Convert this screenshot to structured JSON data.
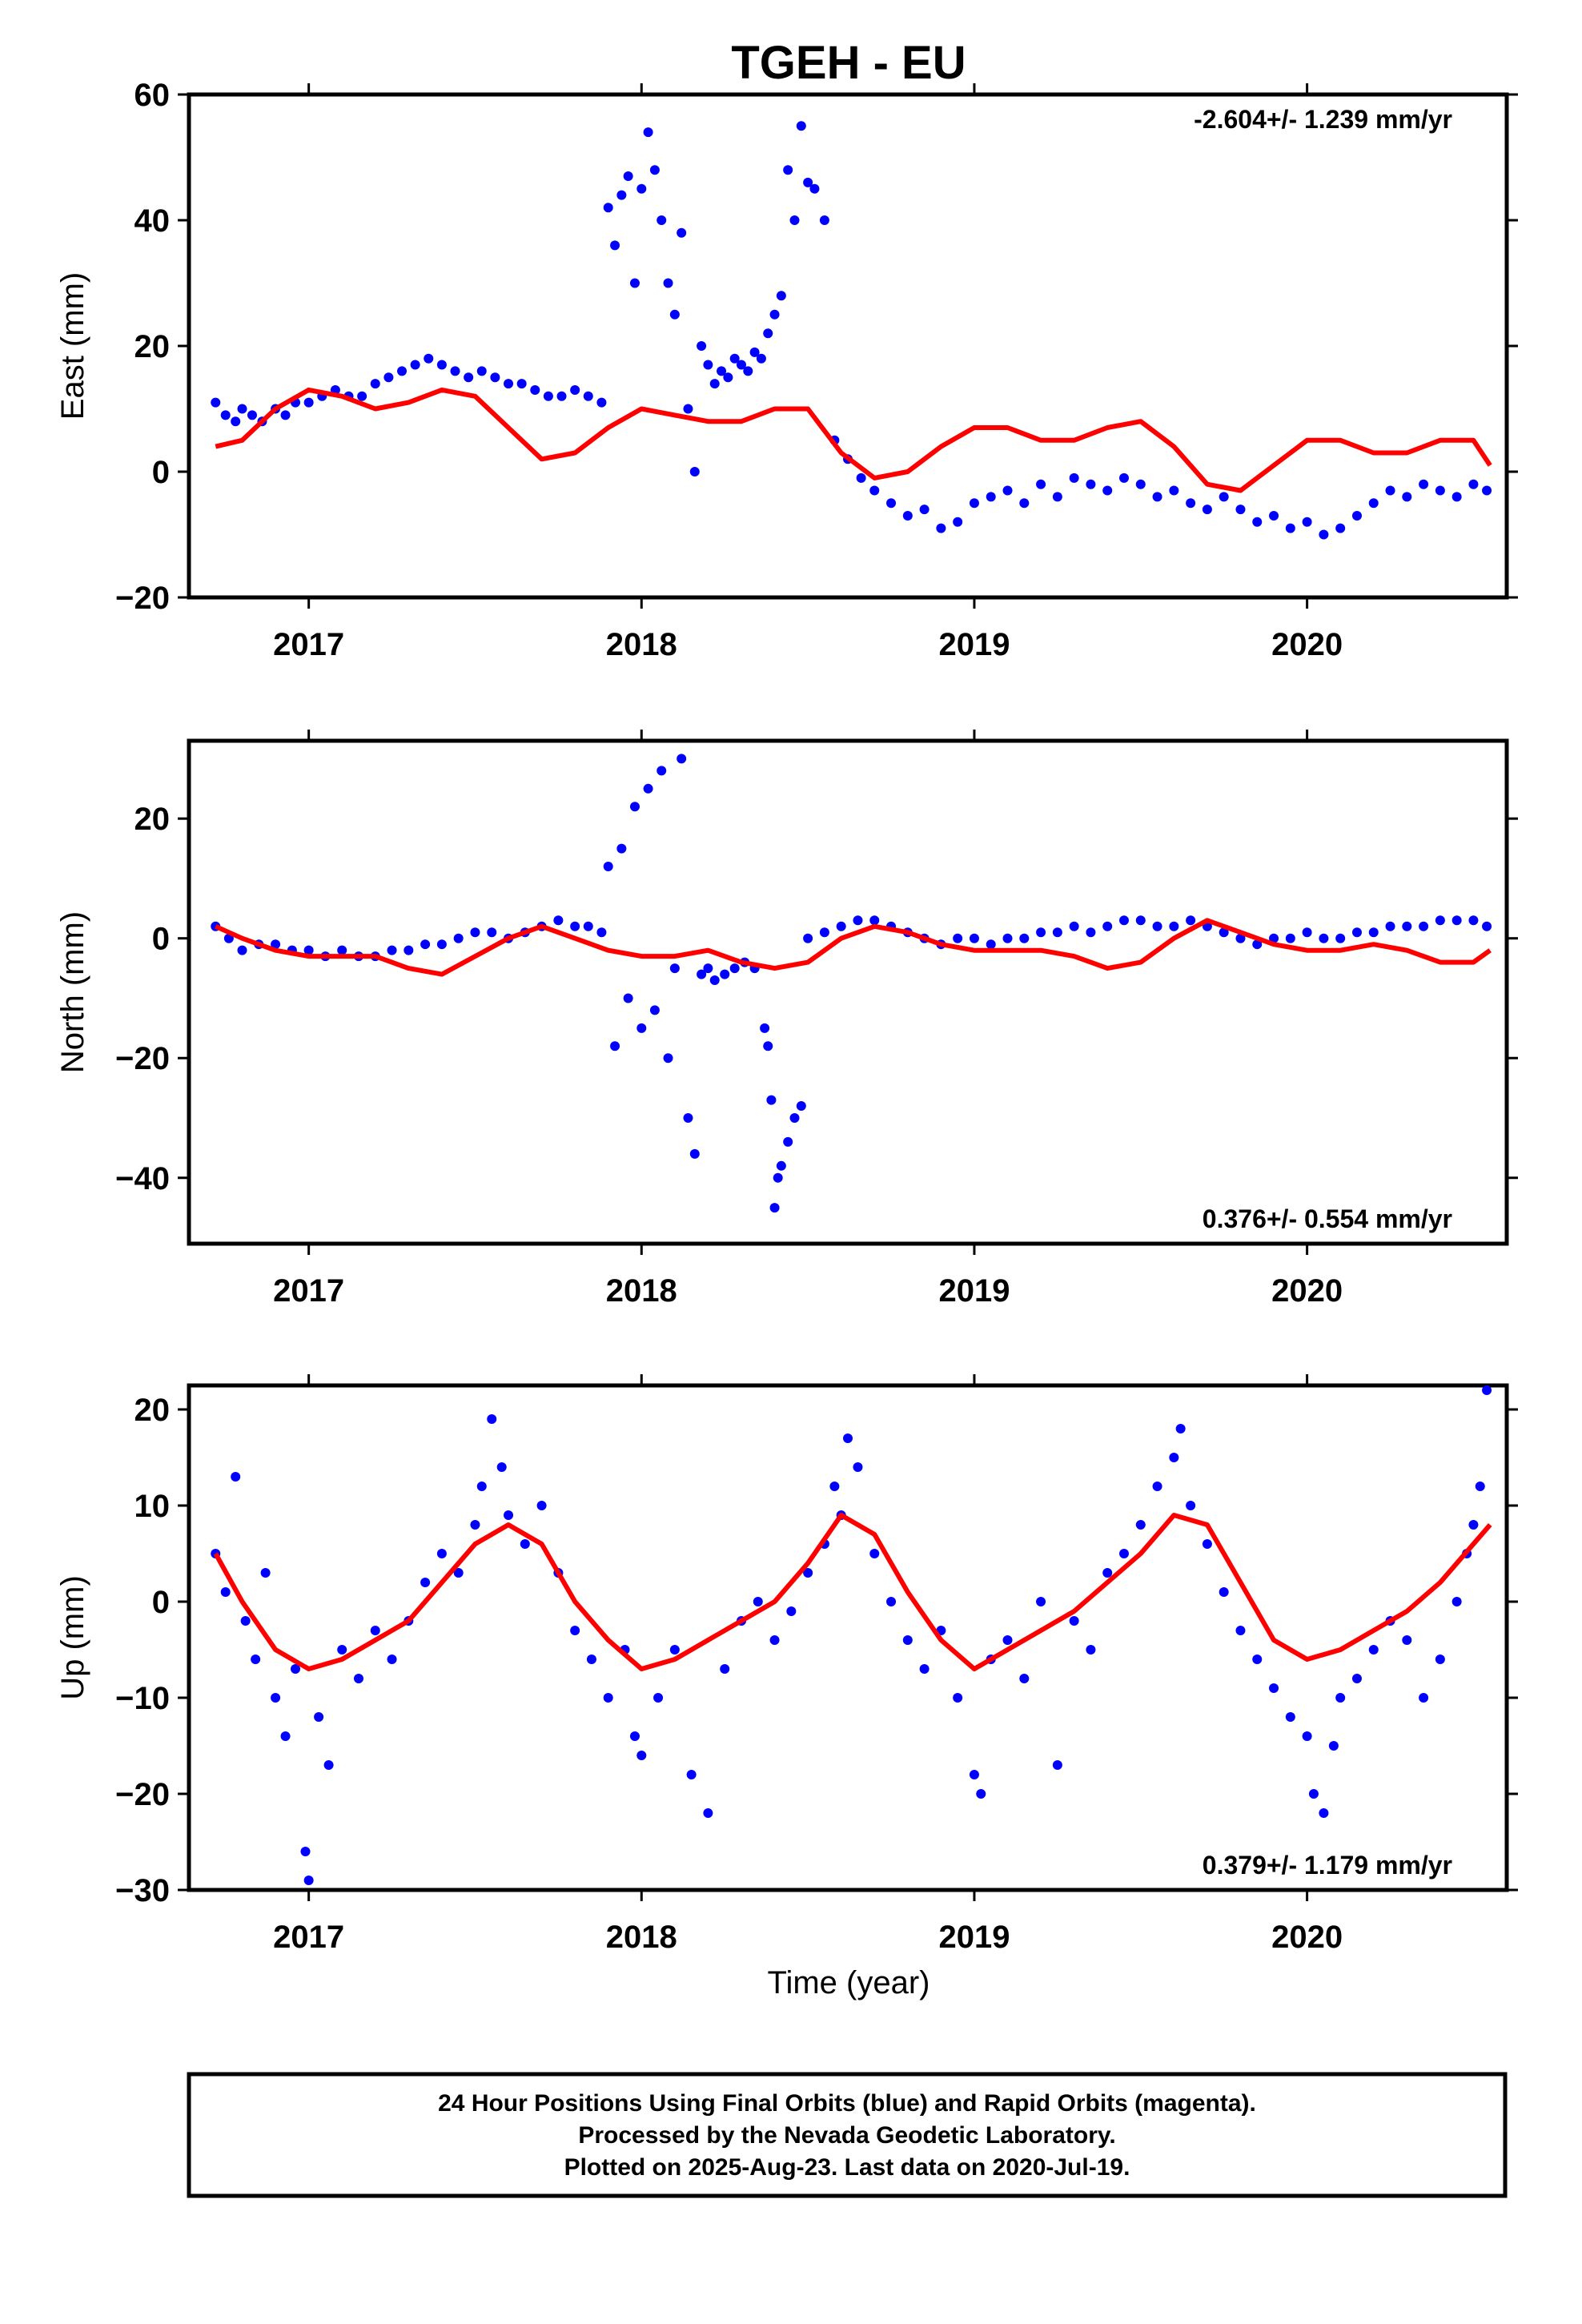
{
  "title": "TGEH - EU",
  "xlabel": "Time (year)",
  "footer": {
    "line1": "24 Hour Positions Using Final Orbits (blue) and Rapid Orbits (magenta).",
    "line2": "Processed by the Nevada Geodetic Laboratory.",
    "line3": "Plotted on 2025-Aug-23. Last data on 2020-Jul-19."
  },
  "colors": {
    "points": "#0000ff",
    "model": "#ff0000",
    "frame": "#000000"
  },
  "chart_data": [
    {
      "type": "scatter",
      "ylabel": "East (mm)",
      "rate": "-2.604+/- 1.239 mm/yr",
      "rate_position": "top-right",
      "xlim": [
        2016.64,
        2020.6
      ],
      "ylim": [
        -20,
        60
      ],
      "yticks": [
        -20,
        0,
        20,
        40,
        60
      ],
      "xticks": [
        2017,
        2018,
        2019,
        2020
      ],
      "series": [
        {
          "kind": "points",
          "x": [
            2016.72,
            2016.75,
            2016.78,
            2016.8,
            2016.83,
            2016.86,
            2016.9,
            2016.93,
            2016.96,
            2017.0,
            2017.04,
            2017.08,
            2017.12,
            2017.16,
            2017.2,
            2017.24,
            2017.28,
            2017.32,
            2017.36,
            2017.4,
            2017.44,
            2017.48,
            2017.52,
            2017.56,
            2017.6,
            2017.64,
            2017.68,
            2017.72,
            2017.76,
            2017.8,
            2017.84,
            2017.88,
            2017.9,
            2017.92,
            2017.94,
            2017.96,
            2017.98,
            2018.0,
            2018.02,
            2018.04,
            2018.06,
            2018.08,
            2018.1,
            2018.12,
            2018.14,
            2018.16,
            2018.18,
            2018.2,
            2018.22,
            2018.24,
            2018.26,
            2018.28,
            2018.3,
            2018.32,
            2018.34,
            2018.36,
            2018.38,
            2018.4,
            2018.42,
            2018.44,
            2018.46,
            2018.48,
            2018.5,
            2018.52,
            2018.55,
            2018.58,
            2018.62,
            2018.66,
            2018.7,
            2018.75,
            2018.8,
            2018.85,
            2018.9,
            2018.95,
            2019.0,
            2019.05,
            2019.1,
            2019.15,
            2019.2,
            2019.25,
            2019.3,
            2019.35,
            2019.4,
            2019.45,
            2019.5,
            2019.55,
            2019.6,
            2019.65,
            2019.7,
            2019.75,
            2019.8,
            2019.85,
            2019.9,
            2019.95,
            2020.0,
            2020.05,
            2020.1,
            2020.15,
            2020.2,
            2020.25,
            2020.3,
            2020.35,
            2020.4,
            2020.45,
            2020.5,
            2020.54
          ],
          "y": [
            11,
            9,
            8,
            10,
            9,
            8,
            10,
            9,
            11,
            11,
            12,
            13,
            12,
            12,
            14,
            15,
            16,
            17,
            18,
            17,
            16,
            15,
            16,
            15,
            14,
            14,
            13,
            12,
            12,
            13,
            12,
            11,
            42,
            36,
            44,
            47,
            30,
            45,
            54,
            48,
            40,
            30,
            25,
            38,
            10,
            0,
            20,
            17,
            14,
            16,
            15,
            18,
            17,
            16,
            19,
            18,
            22,
            25,
            28,
            48,
            40,
            55,
            46,
            45,
            40,
            5,
            2,
            -1,
            -3,
            -5,
            -7,
            -6,
            -9,
            -8,
            -5,
            -4,
            -3,
            -5,
            -2,
            -4,
            -1,
            -2,
            -3,
            -1,
            -2,
            -4,
            -3,
            -5,
            -6,
            -4,
            -6,
            -8,
            -7,
            -9,
            -8,
            -10,
            -9,
            -7,
            -5,
            -3,
            -4,
            -2,
            -3,
            -4,
            -2,
            -3
          ]
        },
        {
          "kind": "model",
          "x": [
            2016.72,
            2016.8,
            2016.9,
            2017.0,
            2017.1,
            2017.2,
            2017.3,
            2017.4,
            2017.5,
            2017.6,
            2017.7,
            2017.8,
            2017.9,
            2018.0,
            2018.1,
            2018.2,
            2018.3,
            2018.4,
            2018.5,
            2018.6,
            2018.7,
            2018.8,
            2018.9,
            2019.0,
            2019.1,
            2019.2,
            2019.3,
            2019.4,
            2019.5,
            2019.6,
            2019.7,
            2019.8,
            2019.9,
            2020.0,
            2020.1,
            2020.2,
            2020.3,
            2020.4,
            2020.5,
            2020.55
          ],
          "y": [
            4,
            5,
            10,
            13,
            12,
            10,
            11,
            13,
            12,
            7,
            2,
            3,
            7,
            10,
            9,
            8,
            8,
            10,
            10,
            3,
            -1,
            0,
            4,
            7,
            7,
            5,
            5,
            7,
            8,
            4,
            -2,
            -3,
            1,
            5,
            5,
            3,
            3,
            5,
            5,
            1
          ]
        }
      ]
    },
    {
      "type": "scatter",
      "ylabel": "North (mm)",
      "rate": "0.376+/- 0.554 mm/yr",
      "rate_position": "bottom-right",
      "xlim": [
        2016.64,
        2020.6
      ],
      "ylim": [
        -51,
        33
      ],
      "yticks": [
        -40,
        -20,
        0,
        20
      ],
      "xticks": [
        2017,
        2018,
        2019,
        2020
      ],
      "series": [
        {
          "kind": "points",
          "x": [
            2016.72,
            2016.76,
            2016.8,
            2016.85,
            2016.9,
            2016.95,
            2017.0,
            2017.05,
            2017.1,
            2017.15,
            2017.2,
            2017.25,
            2017.3,
            2017.35,
            2017.4,
            2017.45,
            2017.5,
            2017.55,
            2017.6,
            2017.65,
            2017.7,
            2017.75,
            2017.8,
            2017.84,
            2017.88,
            2017.9,
            2017.92,
            2017.94,
            2017.96,
            2017.98,
            2018.0,
            2018.02,
            2018.04,
            2018.06,
            2018.08,
            2018.1,
            2018.12,
            2018.14,
            2018.16,
            2018.18,
            2018.2,
            2018.22,
            2018.25,
            2018.28,
            2018.31,
            2018.34,
            2018.37,
            2018.38,
            2018.39,
            2018.4,
            2018.41,
            2018.42,
            2018.44,
            2018.46,
            2018.48,
            2018.5,
            2018.55,
            2018.6,
            2018.65,
            2018.7,
            2018.75,
            2018.8,
            2018.85,
            2018.9,
            2018.95,
            2019.0,
            2019.05,
            2019.1,
            2019.15,
            2019.2,
            2019.25,
            2019.3,
            2019.35,
            2019.4,
            2019.45,
            2019.5,
            2019.55,
            2019.6,
            2019.65,
            2019.7,
            2019.75,
            2019.8,
            2019.85,
            2019.9,
            2019.95,
            2020.0,
            2020.05,
            2020.1,
            2020.15,
            2020.2,
            2020.25,
            2020.3,
            2020.35,
            2020.4,
            2020.45,
            2020.5,
            2020.54
          ],
          "y": [
            2,
            0,
            -2,
            -1,
            -1,
            -2,
            -2,
            -3,
            -2,
            -3,
            -3,
            -2,
            -2,
            -1,
            -1,
            0,
            1,
            1,
            0,
            1,
            2,
            3,
            2,
            2,
            1,
            12,
            -18,
            15,
            -10,
            22,
            -15,
            25,
            -12,
            28,
            -20,
            -5,
            30,
            -30,
            -36,
            -6,
            -5,
            -7,
            -6,
            -5,
            -4,
            -5,
            -15,
            -18,
            -27,
            -45,
            -40,
            -38,
            -34,
            -30,
            -28,
            0,
            1,
            2,
            3,
            3,
            2,
            1,
            0,
            -1,
            0,
            0,
            -1,
            0,
            0,
            1,
            1,
            2,
            1,
            2,
            3,
            3,
            2,
            2,
            3,
            2,
            1,
            0,
            -1,
            0,
            0,
            1,
            0,
            0,
            1,
            1,
            2,
            2,
            2,
            3,
            3,
            3,
            2
          ]
        },
        {
          "kind": "model",
          "x": [
            2016.72,
            2016.8,
            2016.9,
            2017.0,
            2017.1,
            2017.2,
            2017.3,
            2017.4,
            2017.5,
            2017.6,
            2017.7,
            2017.8,
            2017.9,
            2018.0,
            2018.1,
            2018.2,
            2018.3,
            2018.4,
            2018.5,
            2018.6,
            2018.7,
            2018.8,
            2018.9,
            2019.0,
            2019.1,
            2019.2,
            2019.3,
            2019.4,
            2019.5,
            2019.6,
            2019.7,
            2019.8,
            2019.9,
            2020.0,
            2020.1,
            2020.2,
            2020.3,
            2020.4,
            2020.5,
            2020.55
          ],
          "y": [
            2,
            0,
            -2,
            -3,
            -3,
            -3,
            -5,
            -6,
            -3,
            0,
            2,
            0,
            -2,
            -3,
            -3,
            -2,
            -4,
            -5,
            -4,
            0,
            2,
            1,
            -1,
            -2,
            -2,
            -2,
            -3,
            -5,
            -4,
            0,
            3,
            1,
            -1,
            -2,
            -2,
            -1,
            -2,
            -4,
            -4,
            -2
          ]
        }
      ]
    },
    {
      "type": "scatter",
      "ylabel": "Up (mm)",
      "rate": "0.379+/- 1.179 mm/yr",
      "rate_position": "bottom-right",
      "xlim": [
        2016.64,
        2020.6
      ],
      "ylim": [
        -30,
        22.5
      ],
      "yticks": [
        -30,
        -20,
        -10,
        0,
        10,
        20
      ],
      "xticks": [
        2017,
        2018,
        2019,
        2020
      ],
      "series": [
        {
          "kind": "points",
          "x": [
            2016.72,
            2016.75,
            2016.78,
            2016.81,
            2016.84,
            2016.87,
            2016.9,
            2016.93,
            2016.96,
            2016.99,
            2017.0,
            2017.03,
            2017.06,
            2017.1,
            2017.15,
            2017.2,
            2017.25,
            2017.3,
            2017.35,
            2017.4,
            2017.45,
            2017.5,
            2017.52,
            2017.55,
            2017.58,
            2017.6,
            2017.65,
            2017.7,
            2017.75,
            2017.8,
            2017.85,
            2017.9,
            2017.95,
            2017.98,
            2018.0,
            2018.05,
            2018.1,
            2018.15,
            2018.2,
            2018.25,
            2018.3,
            2018.35,
            2018.4,
            2018.45,
            2018.5,
            2018.55,
            2018.58,
            2018.6,
            2018.62,
            2018.65,
            2018.7,
            2018.75,
            2018.8,
            2018.85,
            2018.9,
            2018.95,
            2019.0,
            2019.02,
            2019.05,
            2019.1,
            2019.15,
            2019.2,
            2019.25,
            2019.3,
            2019.35,
            2019.4,
            2019.45,
            2019.5,
            2019.55,
            2019.6,
            2019.62,
            2019.65,
            2019.7,
            2019.75,
            2019.8,
            2019.85,
            2019.9,
            2019.95,
            2020.0,
            2020.02,
            2020.05,
            2020.08,
            2020.1,
            2020.15,
            2020.2,
            2020.25,
            2020.3,
            2020.35,
            2020.4,
            2020.45,
            2020.48,
            2020.5,
            2020.52,
            2020.54
          ],
          "y": [
            5,
            1,
            13,
            -2,
            -6,
            3,
            -10,
            -14,
            -7,
            -26,
            -29,
            -12,
            -17,
            -5,
            -8,
            -3,
            -6,
            -2,
            2,
            5,
            3,
            8,
            12,
            19,
            14,
            9,
            6,
            10,
            3,
            -3,
            -6,
            -10,
            -5,
            -14,
            -16,
            -10,
            -5,
            -18,
            -22,
            -7,
            -2,
            0,
            -4,
            -1,
            3,
            6,
            12,
            9,
            17,
            14,
            5,
            0,
            -4,
            -7,
            -3,
            -10,
            -18,
            -20,
            -6,
            -4,
            -8,
            0,
            -17,
            -2,
            -5,
            3,
            5,
            8,
            12,
            15,
            18,
            10,
            6,
            1,
            -3,
            -6,
            -9,
            -12,
            -14,
            -20,
            -22,
            -15,
            -10,
            -8,
            -5,
            -2,
            -4,
            -10,
            -6,
            0,
            5,
            8,
            12,
            22
          ]
        },
        {
          "kind": "model",
          "x": [
            2016.72,
            2016.8,
            2016.9,
            2017.0,
            2017.1,
            2017.2,
            2017.3,
            2017.4,
            2017.5,
            2017.6,
            2017.7,
            2017.8,
            2017.9,
            2018.0,
            2018.1,
            2018.2,
            2018.3,
            2018.4,
            2018.5,
            2018.6,
            2018.7,
            2018.8,
            2018.9,
            2019.0,
            2019.1,
            2019.2,
            2019.3,
            2019.4,
            2019.5,
            2019.6,
            2019.7,
            2019.8,
            2019.9,
            2020.0,
            2020.1,
            2020.2,
            2020.3,
            2020.4,
            2020.5,
            2020.55
          ],
          "y": [
            5,
            0,
            -5,
            -7,
            -6,
            -4,
            -2,
            2,
            6,
            8,
            6,
            0,
            -4,
            -7,
            -6,
            -4,
            -2,
            0,
            4,
            9,
            7,
            1,
            -4,
            -7,
            -5,
            -3,
            -1,
            2,
            5,
            9,
            8,
            2,
            -4,
            -6,
            -5,
            -3,
            -1,
            2,
            6,
            8
          ]
        }
      ]
    }
  ]
}
